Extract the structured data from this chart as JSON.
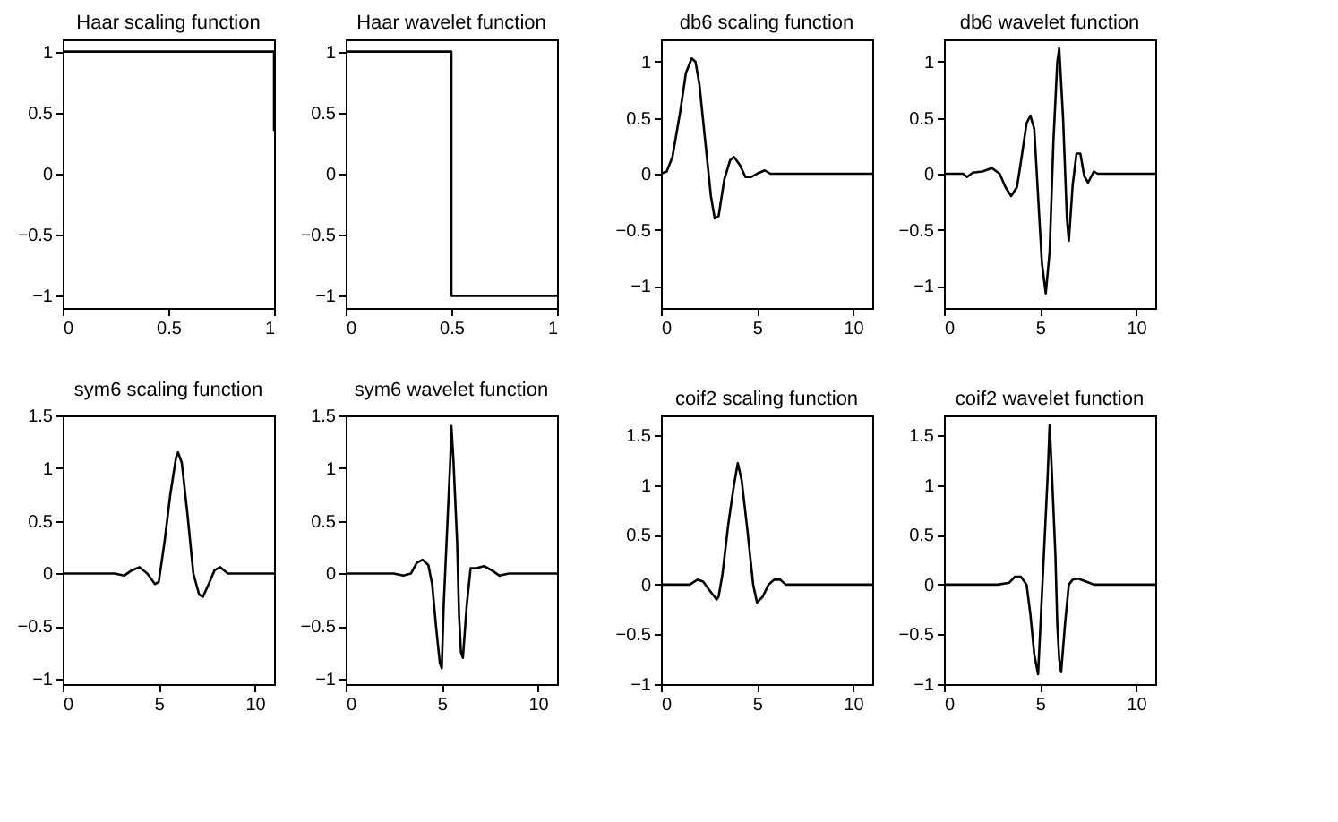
{
  "chart_data": [
    {
      "type": "line",
      "title": "Haar scaling function",
      "xlim": [
        0,
        1
      ],
      "ylim": [
        -1.1,
        1.1
      ],
      "xticks": [
        0,
        0.5,
        1
      ],
      "yticks": [
        -1,
        -0.5,
        0,
        0.5,
        1
      ],
      "series": [
        {
          "color": "#000000",
          "x": [
            0,
            1,
            1
          ],
          "values": [
            1,
            1,
            0.35
          ]
        }
      ]
    },
    {
      "type": "line",
      "title": "Haar wavelet function",
      "xlim": [
        0,
        1
      ],
      "ylim": [
        -1.1,
        1.1
      ],
      "xticks": [
        0,
        0.5,
        1
      ],
      "yticks": [
        -1,
        -0.5,
        0,
        0.5,
        1
      ],
      "series": [
        {
          "color": "#000000",
          "x": [
            0,
            0.5,
            0.5,
            1
          ],
          "values": [
            1,
            1,
            -1,
            -1
          ]
        }
      ]
    },
    {
      "type": "line",
      "title": "db6 scaling function",
      "xlim": [
        0,
        11
      ],
      "ylim": [
        -1.2,
        1.2
      ],
      "xticks": [
        0,
        5,
        10
      ],
      "yticks": [
        -1,
        -0.5,
        0,
        0.5,
        1
      ],
      "series": [
        {
          "color": "#000000",
          "x": [
            0,
            0.3,
            0.6,
            1.0,
            1.3,
            1.6,
            1.8,
            2.0,
            2.3,
            2.6,
            2.8,
            3.0,
            3.3,
            3.6,
            3.8,
            4.1,
            4.4,
            4.7,
            5.0,
            5.4,
            5.7,
            11
          ],
          "values": [
            0,
            0.02,
            0.15,
            0.55,
            0.9,
            1.03,
            1.0,
            0.8,
            0.3,
            -0.2,
            -0.4,
            -0.38,
            -0.05,
            0.12,
            0.15,
            0.08,
            -0.03,
            -0.03,
            0,
            0.03,
            0,
            0
          ]
        }
      ]
    },
    {
      "type": "line",
      "title": "db6 wavelet function",
      "xlim": [
        0,
        11
      ],
      "ylim": [
        -1.2,
        1.2
      ],
      "xticks": [
        0,
        5,
        10
      ],
      "yticks": [
        -1,
        -0.5,
        0,
        0.5,
        1
      ],
      "series": [
        {
          "color": "#000000",
          "x": [
            0,
            1.0,
            1.2,
            1.5,
            2.0,
            2.5,
            2.9,
            3.2,
            3.5,
            3.8,
            4.0,
            4.3,
            4.5,
            4.7,
            4.9,
            5.1,
            5.3,
            5.5,
            5.7,
            5.9,
            6.0,
            6.2,
            6.4,
            6.5,
            6.7,
            6.9,
            7.1,
            7.3,
            7.5,
            7.8,
            8.0,
            11
          ],
          "values": [
            0,
            0,
            -0.03,
            0.01,
            0.02,
            0.05,
            0,
            -0.12,
            -0.2,
            -0.12,
            0.1,
            0.45,
            0.52,
            0.4,
            -0.2,
            -0.8,
            -1.07,
            -0.7,
            0.3,
            1.0,
            1.12,
            0.5,
            -0.4,
            -0.6,
            -0.1,
            0.18,
            0.18,
            -0.02,
            -0.08,
            0.02,
            0,
            0
          ]
        }
      ]
    },
    {
      "type": "line",
      "title": "sym6 scaling function",
      "xlim": [
        0,
        11
      ],
      "ylim": [
        -1.05,
        1.5
      ],
      "xticks": [
        0,
        5,
        10
      ],
      "yticks": [
        -1,
        -0.5,
        0,
        0.5,
        1,
        1.5
      ],
      "series": [
        {
          "color": "#000000",
          "x": [
            0,
            2.7,
            3.2,
            3.6,
            4.0,
            4.4,
            4.8,
            5.0,
            5.3,
            5.6,
            5.9,
            6.0,
            6.2,
            6.5,
            6.8,
            7.1,
            7.3,
            7.6,
            7.9,
            8.2,
            8.6,
            11
          ],
          "values": [
            0,
            0,
            -0.02,
            0.03,
            0.06,
            0,
            -0.1,
            -0.08,
            0.3,
            0.75,
            1.1,
            1.15,
            1.05,
            0.55,
            0,
            -0.2,
            -0.22,
            -0.1,
            0.03,
            0.06,
            0,
            0
          ]
        }
      ]
    },
    {
      "type": "line",
      "title": "sym6 wavelet function",
      "xlim": [
        0,
        11
      ],
      "ylim": [
        -1.05,
        1.5
      ],
      "xticks": [
        0,
        5,
        10
      ],
      "yticks": [
        -1,
        -0.5,
        0,
        0.5,
        1,
        1.5
      ],
      "series": [
        {
          "color": "#000000",
          "x": [
            0,
            2.5,
            3.0,
            3.4,
            3.7,
            4.0,
            4.3,
            4.5,
            4.7,
            4.9,
            5.0,
            5.1,
            5.3,
            5.45,
            5.5,
            5.6,
            5.8,
            5.9,
            6.0,
            6.1,
            6.3,
            6.5,
            6.8,
            7.2,
            7.6,
            8.0,
            8.5,
            11
          ],
          "values": [
            0,
            0,
            -0.02,
            0,
            0.1,
            0.13,
            0.08,
            -0.1,
            -0.5,
            -0.85,
            -0.9,
            -0.3,
            0.5,
            1.1,
            1.4,
            1.1,
            0.3,
            -0.4,
            -0.75,
            -0.8,
            -0.3,
            0.05,
            0.05,
            0.07,
            0.03,
            -0.02,
            0,
            0
          ]
        }
      ]
    },
    {
      "type": "line",
      "title": "coif2 scaling function",
      "xlim": [
        0,
        11
      ],
      "ylim": [
        -1,
        1.7
      ],
      "xticks": [
        0,
        5,
        10
      ],
      "yticks": [
        -1,
        -0.5,
        0,
        0.5,
        1,
        1.5
      ],
      "series": [
        {
          "color": "#000000",
          "x": [
            0,
            1.5,
            1.9,
            2.2,
            2.5,
            2.9,
            3.0,
            3.2,
            3.5,
            3.8,
            4.0,
            4.2,
            4.5,
            4.8,
            5.0,
            5.3,
            5.6,
            5.9,
            6.2,
            6.5,
            11
          ],
          "values": [
            0,
            0,
            0.05,
            0.03,
            -0.05,
            -0.15,
            -0.12,
            0.1,
            0.6,
            1.0,
            1.22,
            1.05,
            0.55,
            0,
            -0.18,
            -0.12,
            0,
            0.05,
            0.05,
            0,
            0
          ]
        }
      ]
    },
    {
      "type": "line",
      "title": "coif2 wavelet function",
      "xlim": [
        0,
        11
      ],
      "ylim": [
        -1,
        1.7
      ],
      "xticks": [
        0,
        5,
        10
      ],
      "yticks": [
        -1,
        -0.5,
        0,
        0.5,
        1,
        1.5
      ],
      "series": [
        {
          "color": "#000000",
          "x": [
            0,
            2.8,
            3.4,
            3.7,
            4.0,
            4.3,
            4.5,
            4.7,
            4.9,
            5.0,
            5.2,
            5.4,
            5.5,
            5.6,
            5.8,
            5.9,
            6.0,
            6.1,
            6.3,
            6.5,
            6.7,
            7.0,
            7.4,
            7.8,
            11
          ],
          "values": [
            0,
            0,
            0.02,
            0.08,
            0.08,
            0,
            -0.3,
            -0.7,
            -0.9,
            -0.5,
            0.3,
            1.1,
            1.6,
            1.2,
            0.3,
            -0.4,
            -0.75,
            -0.88,
            -0.4,
            0,
            0.05,
            0.06,
            0.03,
            0,
            0
          ]
        }
      ]
    }
  ]
}
